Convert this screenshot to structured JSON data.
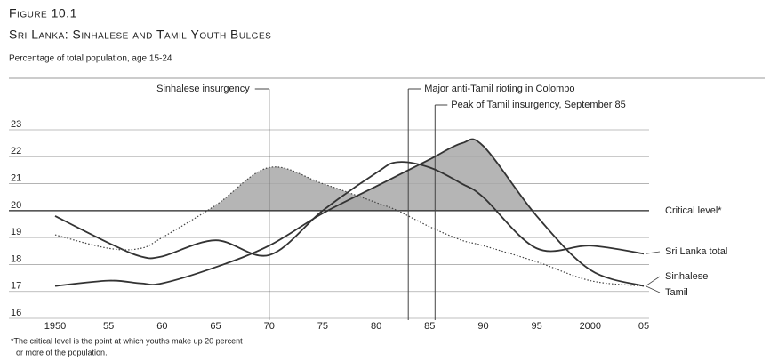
{
  "chart_data": {
    "type": "line",
    "figure_label": "Figure 10.1",
    "title": "Sri Lanka: Sinhalese and Tamil Youth Bulges",
    "subtitle": "Percentage of total population, age 15-24",
    "footnote": [
      "*The critical level is the point at which youths make up 20 percent",
      "or more of the population."
    ],
    "x": [
      1950,
      1955,
      1958,
      1960,
      1965,
      1970,
      1975,
      1980,
      1982,
      1985,
      1988,
      1990,
      1995,
      2000,
      2005
    ],
    "series": [
      {
        "name": "Sri Lanka total",
        "color": "#333333",
        "style": "solid",
        "values": [
          19.8,
          18.8,
          18.3,
          18.3,
          18.9,
          18.35,
          20.0,
          21.4,
          21.8,
          21.6,
          21.0,
          20.5,
          18.6,
          18.7,
          18.4
        ]
      },
      {
        "name": "Sinhalese",
        "color": "#444444",
        "style": "dotted",
        "shaded": true,
        "values": [
          19.1,
          18.6,
          18.6,
          19.0,
          20.2,
          21.6,
          21.0,
          20.3,
          20.0,
          19.4,
          18.9,
          18.7,
          18.1,
          17.4,
          17.2
        ]
      },
      {
        "name": "Tamil",
        "color": "#333333",
        "style": "solid",
        "shaded": true,
        "values": [
          17.2,
          17.4,
          17.3,
          17.3,
          17.9,
          18.7,
          19.9,
          20.9,
          21.3,
          21.9,
          22.5,
          22.4,
          19.8,
          17.8,
          17.2
        ]
      }
    ],
    "critical_level": {
      "value": 20,
      "label": "Critical level*"
    },
    "annotations": [
      {
        "text": "Sinhalese insurgency",
        "x": 1970
      },
      {
        "text": "Major anti-Tamil rioting in Colombo",
        "x": 1983
      },
      {
        "text": "Peak of Tamil insurgency, September 85",
        "x": 1985.5
      }
    ],
    "xlim": [
      1950,
      2005
    ],
    "ylim": [
      16,
      23
    ],
    "xticks": [
      1950,
      {
        "value": 1955,
        "label": "55"
      },
      {
        "value": 1960,
        "label": "60"
      },
      {
        "value": 1965,
        "label": "65"
      },
      {
        "value": 1970,
        "label": "70"
      },
      {
        "value": 1975,
        "label": "75"
      },
      {
        "value": 1980,
        "label": "80"
      },
      {
        "value": 1985,
        "label": "85"
      },
      {
        "value": 1990,
        "label": "90"
      },
      {
        "value": 1995,
        "label": "95"
      },
      2000,
      {
        "value": 2005,
        "label": "05"
      }
    ],
    "yticks": [
      16,
      17,
      18,
      19,
      20,
      21,
      22,
      23
    ],
    "grid": true,
    "shade_color": "#a8a8a8"
  }
}
